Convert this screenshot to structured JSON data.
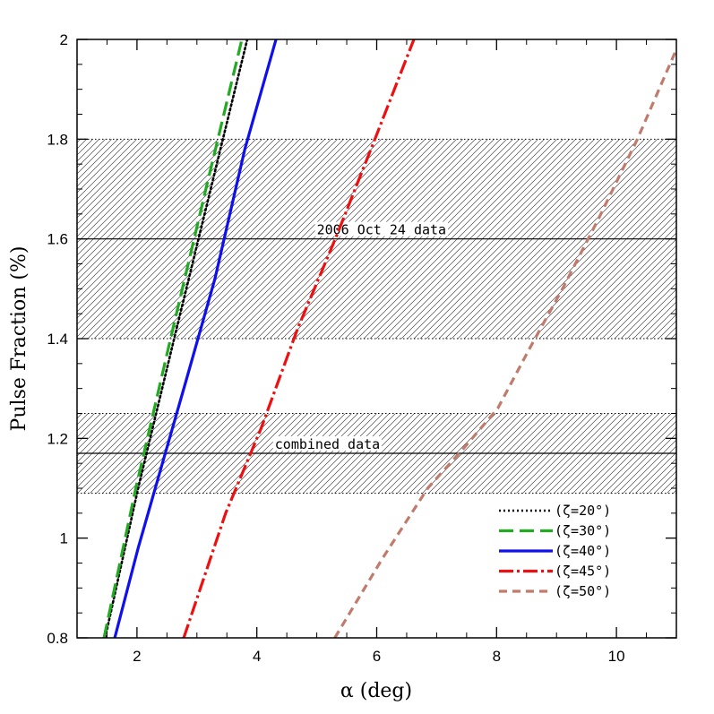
{
  "chart_data": {
    "type": "line",
    "title": "",
    "xlabel": "α (deg)",
    "ylabel": "Pulse Fraction (%)",
    "xlim": [
      1,
      11
    ],
    "ylim": [
      0.8,
      2.0
    ],
    "x_ticks": [
      2,
      4,
      6,
      8,
      10
    ],
    "x_tick_labels": [
      "2",
      "4",
      "6",
      "8",
      "10"
    ],
    "y_ticks": [
      0.8,
      1.0,
      1.2,
      1.4,
      1.6,
      1.8,
      2.0
    ],
    "y_tick_labels": [
      "0.8",
      "1",
      "1.2",
      "1.4",
      "1.6",
      "1.8",
      "2"
    ],
    "grid": false,
    "legend_position": "bottom-right",
    "bands": [
      {
        "label": "2006 Oct 24 data",
        "center": 1.6,
        "low": 1.4,
        "high": 1.8
      },
      {
        "label": "combined data",
        "center": 1.17,
        "low": 1.09,
        "high": 1.25
      }
    ],
    "series": [
      {
        "name": "(ζ=20°)",
        "color": "#000000",
        "style": "dotted",
        "x": [
          1.47,
          2.02,
          2.62,
          3.23,
          3.84
        ],
        "y": [
          0.8,
          1.1,
          1.4,
          1.7,
          2.0
        ]
      },
      {
        "name": "(ζ=30°)",
        "color": "#22aa22",
        "style": "long-dash",
        "x": [
          1.45,
          1.98,
          2.56,
          3.15,
          3.75
        ],
        "y": [
          0.8,
          1.1,
          1.4,
          1.7,
          2.0
        ]
      },
      {
        "name": "(ζ=40°)",
        "color": "#1010ee",
        "style": "solid",
        "x": [
          1.63,
          2.02,
          2.4,
          2.83,
          3.3,
          3.8,
          4.32
        ],
        "y": [
          0.8,
          0.98,
          1.14,
          1.32,
          1.52,
          1.78,
          2.0
        ]
      },
      {
        "name": "(ζ=45°)",
        "color": "#ee1010",
        "style": "dash-dot",
        "x": [
          2.78,
          3.48,
          4.07,
          4.68,
          5.31,
          5.97,
          6.62
        ],
        "y": [
          0.8,
          1.05,
          1.22,
          1.42,
          1.6,
          1.8,
          2.0
        ]
      },
      {
        "name": "(ζ=50°)",
        "color": "#c07b6c",
        "style": "short-dash",
        "x": [
          5.3,
          6.1,
          6.85,
          7.45,
          8.02,
          8.55,
          9.1,
          9.7,
          10.35,
          11.0
        ],
        "y": [
          0.8,
          0.96,
          1.1,
          1.18,
          1.26,
          1.38,
          1.5,
          1.64,
          1.8,
          1.98
        ]
      }
    ]
  }
}
